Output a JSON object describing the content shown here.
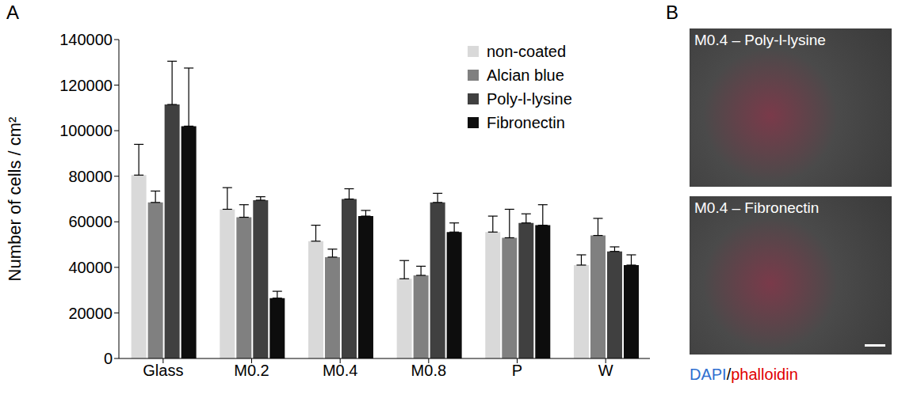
{
  "chart_data": {
    "type": "bar",
    "panel_label": "A",
    "y_label": "Number of cells / cm²",
    "categories": [
      "Glass",
      "M0.2",
      "M0.4",
      "M0.8",
      "P",
      "W"
    ],
    "series": [
      {
        "name": "non-coated",
        "color": "#d9d9d9",
        "values": [
          80500,
          65500,
          51500,
          35000,
          55500,
          41000
        ],
        "errors": [
          13500,
          9500,
          7000,
          8000,
          7000,
          4500
        ]
      },
      {
        "name": "Alcian blue",
        "color": "#808080",
        "values": [
          68500,
          62000,
          44500,
          36500,
          53000,
          54000
        ],
        "errors": [
          5000,
          5500,
          3500,
          4000,
          12500,
          7500
        ]
      },
      {
        "name": "Poly-l-lysine",
        "color": "#404040",
        "values": [
          111500,
          69500,
          70000,
          68500,
          59500,
          47000
        ],
        "errors": [
          19000,
          1500,
          4500,
          4000,
          4000,
          2000
        ]
      },
      {
        "name": "Fibronectin",
        "color": "#0d0d0d",
        "values": [
          102000,
          26500,
          62500,
          55500,
          58500,
          41000
        ],
        "errors": [
          25500,
          3000,
          2500,
          4000,
          9000,
          4500
        ]
      }
    ],
    "ylim": [
      0,
      140000
    ],
    "yticks": [
      0,
      20000,
      40000,
      60000,
      80000,
      100000,
      120000,
      140000
    ],
    "grid": false,
    "legend": "top-right"
  },
  "panel_b": {
    "panel_label": "B",
    "images": [
      "M0.4 – Poly-l-lysine",
      "M0.4 – Fibronectin"
    ],
    "stain": [
      {
        "text": "DAPI",
        "color": "#2f6fd0"
      },
      {
        "text": "/",
        "color": "#000000"
      },
      {
        "text": "phalloidin",
        "color": "#e00000"
      }
    ]
  }
}
